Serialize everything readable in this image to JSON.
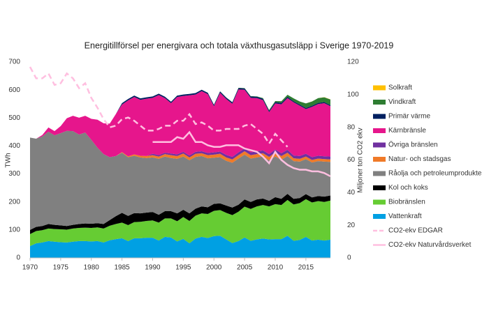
{
  "chart_data": {
    "type": "stacked-area",
    "title": "Energitillförsel per energivara och totala växthusgasutsläpp i Sverige 1970-2019",
    "y_label": "TWh",
    "y2_label": "Miljoner ton CO2 ekv",
    "x": [
      1970,
      1971,
      1972,
      1973,
      1974,
      1975,
      1976,
      1977,
      1978,
      1979,
      1980,
      1981,
      1982,
      1983,
      1984,
      1985,
      1986,
      1987,
      1988,
      1989,
      1990,
      1991,
      1992,
      1993,
      1994,
      1995,
      1996,
      1997,
      1998,
      1999,
      2000,
      2001,
      2002,
      2003,
      2004,
      2005,
      2006,
      2007,
      2008,
      2009,
      2010,
      2011,
      2012,
      2013,
      2014,
      2015,
      2016,
      2017,
      2018,
      2019
    ],
    "xlim": [
      1970,
      2019
    ],
    "xticks": [
      1970,
      1975,
      1980,
      1985,
      1990,
      1995,
      2000,
      2005,
      2010,
      2015
    ],
    "ylim": [
      0,
      700
    ],
    "yticks": [
      0,
      100,
      200,
      300,
      400,
      500,
      600,
      700
    ],
    "y2lim": [
      0,
      120
    ],
    "y2ticks": [
      0,
      20,
      40,
      60,
      80,
      100,
      120
    ],
    "series": [
      {
        "name": "Vattenkraft",
        "color": "#00a0e3",
        "values": [
          42,
          52,
          55,
          60,
          58,
          56,
          55,
          58,
          60,
          60,
          59,
          60,
          55,
          63,
          67,
          70,
          60,
          70,
          70,
          72,
          72,
          62,
          75,
          73,
          59,
          68,
          52,
          69,
          75,
          71,
          78,
          79,
          66,
          53,
          60,
          73,
          61,
          66,
          69,
          66,
          67,
          67,
          79,
          61,
          64,
          75,
          62,
          65,
          62,
          65
        ]
      },
      {
        "name": "Biobränslen",
        "color": "#66cc33",
        "values": [
          43,
          44,
          44,
          45,
          45,
          46,
          46,
          47,
          47,
          48,
          48,
          49,
          50,
          52,
          54,
          56,
          57,
          58,
          59,
          60,
          62,
          64,
          66,
          68,
          72,
          78,
          80,
          82,
          84,
          86,
          90,
          92,
          95,
          100,
          105,
          110,
          114,
          118,
          120,
          118,
          125,
          122,
          128,
          130,
          132,
          135,
          136,
          138,
          138,
          140
        ]
      },
      {
        "name": "Kol och koks",
        "color": "#000000",
        "values": [
          15,
          15,
          15,
          16,
          15,
          14,
          13,
          13,
          14,
          15,
          15,
          15,
          16,
          20,
          28,
          35,
          33,
          32,
          30,
          30,
          30,
          28,
          26,
          26,
          28,
          26,
          27,
          25,
          25,
          24,
          25,
          24,
          26,
          27,
          25,
          26,
          25,
          25,
          23,
          20,
          25,
          22,
          22,
          20,
          18,
          18,
          18,
          18,
          19,
          18
        ]
      },
      {
        "name": "Råolja och petroleumprodukter",
        "color": "#808080",
        "values": [
          330,
          315,
          320,
          330,
          320,
          330,
          340,
          335,
          320,
          325,
          300,
          270,
          250,
          225,
          215,
          215,
          210,
          205,
          200,
          195,
          195,
          200,
          195,
          190,
          195,
          190,
          190,
          185,
          180,
          175,
          165,
          165,
          160,
          160,
          165,
          160,
          155,
          150,
          150,
          145,
          145,
          140,
          135,
          135,
          130,
          125,
          125,
          125,
          125,
          120
        ]
      },
      {
        "name": "Natur- och stadsgas",
        "color": "#f07a28",
        "values": [
          0,
          0,
          0,
          0,
          0,
          0,
          0,
          0,
          0,
          0,
          0,
          0,
          0,
          0,
          0,
          2,
          3,
          5,
          6,
          7,
          8,
          8,
          9,
          10,
          10,
          11,
          10,
          11,
          10,
          11,
          11,
          12,
          12,
          12,
          12,
          12,
          12,
          12,
          12,
          12,
          15,
          13,
          12,
          10,
          10,
          9,
          9,
          9,
          9,
          9
        ]
      },
      {
        "name": "Övriga bränslen",
        "color": "#7030a0",
        "values": [
          0,
          0,
          0,
          0,
          0,
          0,
          0,
          0,
          0,
          0,
          0,
          0,
          0,
          0,
          0,
          0,
          0,
          0,
          0,
          0,
          5,
          5,
          5,
          6,
          6,
          6,
          7,
          7,
          7,
          8,
          8,
          8,
          9,
          9,
          10,
          10,
          10,
          10,
          10,
          10,
          10,
          10,
          10,
          10,
          10,
          10,
          10,
          10,
          10,
          10
        ]
      },
      {
        "name": "Kärnbränsle",
        "color": "#e6168c",
        "values": [
          0,
          0,
          5,
          15,
          15,
          25,
          45,
          55,
          60,
          60,
          75,
          100,
          110,
          120,
          150,
          170,
          200,
          205,
          200,
          205,
          200,
          215,
          195,
          180,
          205,
          200,
          215,
          205,
          215,
          210,
          165,
          210,
          200,
          190,
          225,
          210,
          195,
          190,
          180,
          150,
          165,
          175,
          185,
          190,
          180,
          160,
          180,
          185,
          190,
          180
        ]
      },
      {
        "name": "Primär värme",
        "color": "#002060",
        "values": [
          0,
          0,
          0,
          0,
          0,
          0,
          0,
          0,
          0,
          0,
          0,
          0,
          0,
          0,
          0,
          5,
          5,
          5,
          5,
          5,
          5,
          5,
          5,
          5,
          5,
          5,
          5,
          5,
          5,
          5,
          5,
          5,
          5,
          5,
          5,
          5,
          5,
          5,
          5,
          5,
          5,
          5,
          5,
          4,
          4,
          4,
          4,
          4,
          4,
          4
        ]
      },
      {
        "name": "Vindkraft",
        "color": "#2e7d32",
        "values": [
          0,
          0,
          0,
          0,
          0,
          0,
          0,
          0,
          0,
          0,
          0,
          0,
          0,
          0,
          0,
          0,
          0,
          0,
          0,
          0,
          0,
          0,
          0,
          0,
          0,
          0,
          0,
          0,
          0,
          0,
          0.5,
          0.5,
          0.6,
          0.5,
          0.9,
          0.9,
          1,
          1.4,
          2,
          2.5,
          3.5,
          6,
          7,
          10,
          11,
          16,
          15,
          17,
          17,
          20
        ]
      },
      {
        "name": "Solkraft",
        "color": "#ffc000",
        "values": [
          0,
          0,
          0,
          0,
          0,
          0,
          0,
          0,
          0,
          0,
          0,
          0,
          0,
          0,
          0,
          0,
          0,
          0,
          0,
          0,
          0,
          0,
          0,
          0,
          0,
          0,
          0,
          0,
          0,
          0,
          0,
          0,
          0,
          0,
          0,
          0,
          0,
          0,
          0,
          0,
          0,
          0,
          0,
          0,
          0,
          0.1,
          0.1,
          0.2,
          0.4,
          0.7
        ]
      }
    ],
    "lines": [
      {
        "name": "CO2-ekv EDGAR",
        "color": "#ffbfe0",
        "dashed": true,
        "axis": "y2",
        "values": [
          117,
          110,
          110,
          113,
          106,
          107,
          113,
          110,
          104,
          107,
          98,
          92,
          85,
          80,
          81,
          85,
          86,
          84,
          81,
          78,
          78,
          79,
          81,
          81,
          84,
          84,
          88,
          82,
          83,
          81,
          78,
          78,
          79,
          79,
          79,
          81,
          82,
          79,
          76,
          70,
          76,
          72,
          68,
          null,
          null,
          null,
          null,
          null,
          null,
          null
        ]
      },
      {
        "name": "CO2-ekv Naturvårdsverket",
        "color": "#ffbfe0",
        "dashed": false,
        "axis": "y2",
        "values": [
          null,
          null,
          null,
          null,
          null,
          null,
          null,
          null,
          null,
          null,
          null,
          null,
          null,
          null,
          null,
          null,
          null,
          null,
          null,
          null,
          71,
          71,
          71,
          71,
          74,
          73,
          77,
          71,
          71,
          69,
          68,
          68,
          69,
          69,
          69,
          67,
          66,
          65,
          62,
          58,
          65,
          60,
          57,
          55,
          54,
          54,
          53,
          53,
          52,
          50
        ]
      }
    ]
  }
}
